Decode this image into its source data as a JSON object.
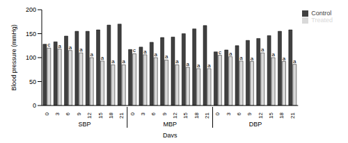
{
  "chart_data": {
    "type": "bar",
    "categories": [
      "0",
      "3",
      "6",
      "9",
      "12",
      "15",
      "18",
      "21",
      "0",
      "3",
      "6",
      "9",
      "12",
      "15",
      "18",
      "21",
      "0",
      "3",
      "6",
      "9",
      "12",
      "15",
      "18",
      "21"
    ],
    "groups": [
      "SBP",
      "MBP",
      "DBP"
    ],
    "xlabel": "Days",
    "ylabel": "Blood pressure (mmHg)",
    "ylim": [
      0,
      200
    ],
    "yticks": [
      0,
      50,
      100,
      150,
      200
    ],
    "legend": "upper right",
    "series": [
      {
        "name": "Control",
        "color": "#404040",
        "values": [
          128,
          133,
          145,
          155,
          155,
          158,
          168,
          170,
          117,
          122,
          132,
          142,
          143,
          150,
          160,
          167,
          112,
          116,
          125,
          136,
          140,
          146,
          155,
          158
        ]
      },
      {
        "name": "Treated",
        "color": "#d9d9d9",
        "values": [
          120,
          118,
          115,
          110,
          100,
          93,
          85,
          85,
          108,
          106,
          100,
          95,
          85,
          80,
          77,
          77,
          105,
          102,
          93,
          92,
          110,
          100,
          92,
          86
        ],
        "annotations": [
          "c",
          "a",
          "a",
          "a",
          "a",
          "a",
          "a",
          "a",
          "c",
          "a",
          "a",
          "a",
          "a",
          "a",
          "a",
          "a",
          "c",
          "a",
          "a",
          "a",
          "a",
          "a",
          "a",
          "a"
        ]
      }
    ]
  }
}
